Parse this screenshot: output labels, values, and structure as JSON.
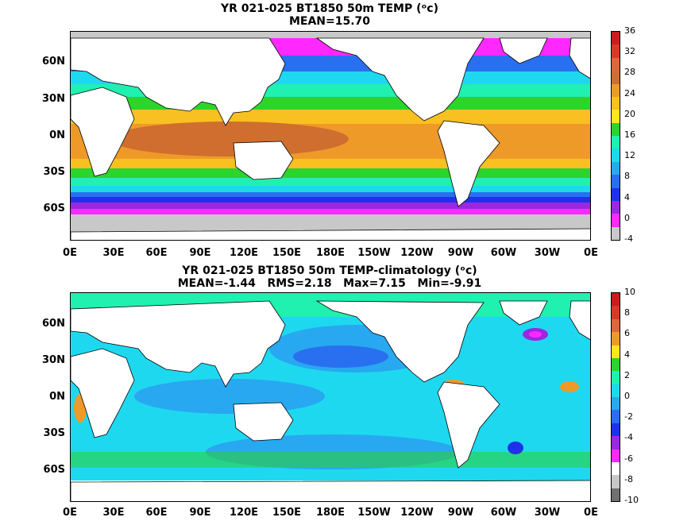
{
  "panels": [
    {
      "title_line1": "YR 021-025 BT1850 50m TEMP (ᵒc)",
      "title_line2": "MEAN=15.70",
      "colorbar_labels": [
        "36",
        "32",
        "28",
        "24",
        "20",
        "16",
        "12",
        "8",
        "4",
        "0",
        "-4"
      ],
      "colorbar_colors": [
        "#c81e1e",
        "#d43c28",
        "#e0663c",
        "#cf6e2e",
        "#ee9a28",
        "#f8c020",
        "#ffe61e",
        "#2cd42c",
        "#20f0b0",
        "#1ed8f0",
        "#28a8f0",
        "#2870f0",
        "#1e32e8",
        "#9a28e0",
        "#ff28ff",
        "#c8c8c8"
      ]
    },
    {
      "title_line1": "YR 021-025 BT1850 50m TEMP-climatology (ᵒc)",
      "title_line2": "MEAN=-1.44   RMS=2.18   Max=7.15   Min=-9.91",
      "colorbar_labels": [
        "10",
        "8",
        "6",
        "4",
        "2",
        "0",
        "-2",
        "-4",
        "-6",
        "-8",
        "-10"
      ],
      "colorbar_colors": [
        "#c81e1e",
        "#d43c28",
        "#e0663c",
        "#ee9a28",
        "#ffe61e",
        "#2cd42c",
        "#20f0b0",
        "#1ed8f0",
        "#28a8f0",
        "#2870f0",
        "#1e32e8",
        "#9a28e0",
        "#ff28ff",
        "#ffffff",
        "#c8c8c8",
        "#707070"
      ]
    }
  ],
  "lat_labels": [
    "60N",
    "30N",
    "0N",
    "30S",
    "60S"
  ],
  "lon_labels": [
    "0E",
    "30E",
    "60E",
    "90E",
    "120E",
    "150E",
    "180E",
    "150W",
    "120W",
    "90W",
    "60W",
    "30W",
    "0E"
  ],
  "colors": {
    "land": "#ffffff",
    "ice": "#c8c8c8",
    "coast": "#000000"
  }
}
